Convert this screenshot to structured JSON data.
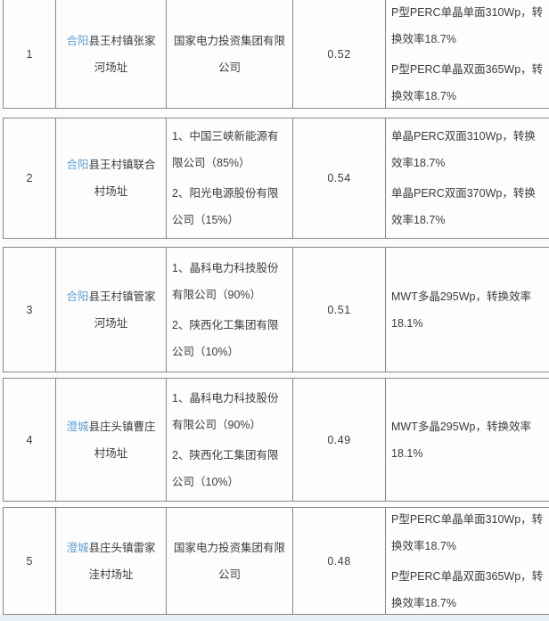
{
  "colors": {
    "site_highlight": "#5b9fd6",
    "text": "#3c3c3c",
    "border": "#878787",
    "bottom_strip": "#e8eef7"
  },
  "table": {
    "rows": [
      {
        "index": "1",
        "site_highlight": "合阳",
        "site_rest": "县王村镇张家河场址",
        "companies": [
          "国家电力投资集团有限公司"
        ],
        "value": "0.52",
        "specs": [
          "P型PERC单晶单面310Wp，转换效率18.7%",
          "P型PERC单晶双面365Wp，转换效率18.7%"
        ]
      },
      {
        "index": "2",
        "site_highlight": "合阳",
        "site_rest": "县王村镇联合村场址",
        "companies": [
          "1、中国三峡新能源有限公司（85%）",
          "2、阳光电源股份有限公司（15%）"
        ],
        "value": "0.54",
        "specs": [
          "单晶PERC双面310Wp，转换效率18.7%",
          "单晶PERC双面370Wp，转换效率18.7%"
        ]
      },
      {
        "index": "3",
        "site_highlight": "合阳",
        "site_rest": "县王村镇管家河场址",
        "companies": [
          "1、晶科电力科技股份有限公司（90%）",
          "2、陕西化工集团有限公司（10%）"
        ],
        "value": "0.51",
        "specs": [
          "MWT多晶295Wp，转换效率18.1%"
        ]
      },
      {
        "index": "4",
        "site_highlight": "澄城",
        "site_rest": "县庄头镇曹庄村场址",
        "companies": [
          "1、晶科电力科技股份有限公司（90%）",
          "2、陕西化工集团有限公司（10%）"
        ],
        "value": "0.49",
        "specs": [
          "MWT多晶295Wp，转换效率18.1%"
        ]
      },
      {
        "index": "5",
        "site_highlight": "澄城",
        "site_rest": "县庄头镇雷家洼村场址",
        "companies": [
          "国家电力投资集团有限公司"
        ],
        "value": "0.48",
        "specs": [
          "P型PERC单晶单面310Wp，转换效率18.7%",
          "P型PERC单晶双面365Wp，转换效率18.7%"
        ]
      }
    ]
  }
}
